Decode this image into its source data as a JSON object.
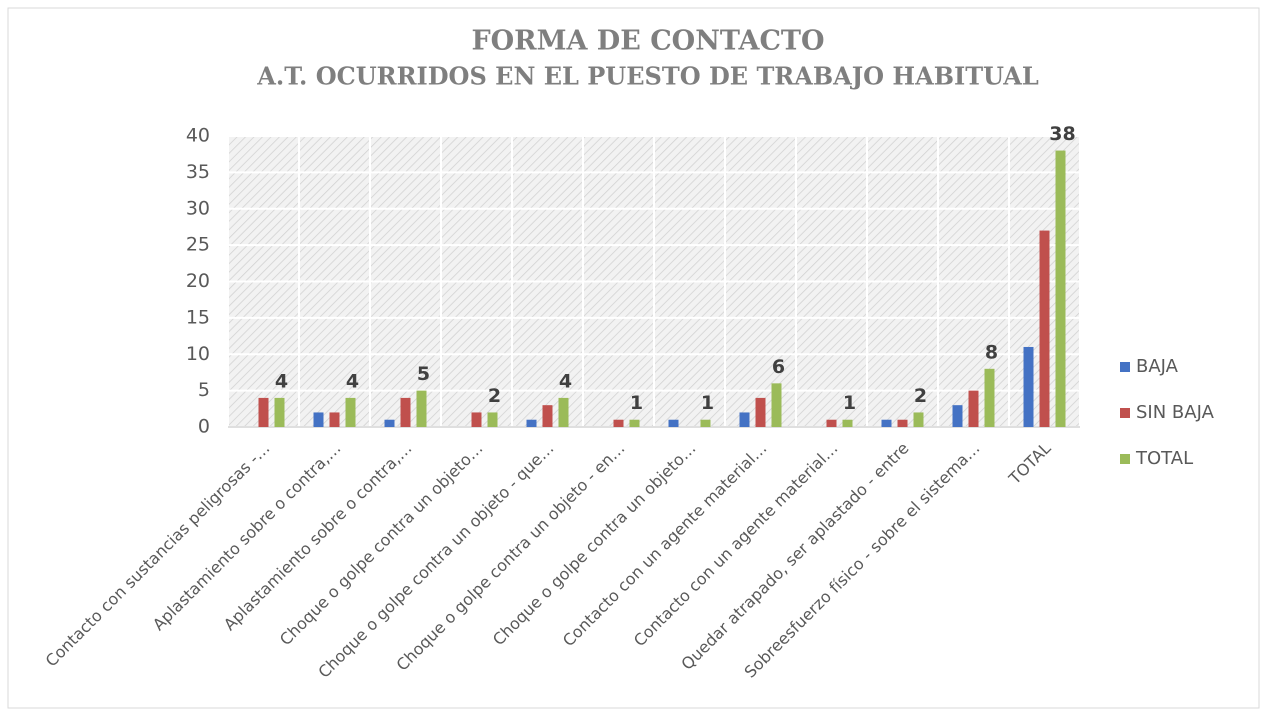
{
  "chart_data": {
    "type": "bar",
    "title": "FORMA DE CONTACTO",
    "subtitle": "A.T. OCURRIDOS EN EL PUESTO DE TRABAJO HABITUAL",
    "categories": [
      "Contacto con sustancias peligrosas -…",
      "Aplastamiento sobre o contra,…",
      "Aplastamiento sobre o contra,…",
      "Choque o golpe contra un objeto…",
      "Choque o golpe contra un objeto - que…",
      "Choque o golpe contra un objeto - en…",
      "Choque o golpe contra un objeto…",
      "Contacto con un agente material…",
      "Contacto con un agente material…",
      "Quedar atrapado, ser aplastado - entre",
      "Sobreesfuerzo físico - sobre el sistema…",
      "TOTAL"
    ],
    "series": [
      {
        "name": "BAJA",
        "color": "#4472c4",
        "values": [
          0,
          2,
          1,
          0,
          1,
          0,
          1,
          2,
          0,
          1,
          3,
          11
        ]
      },
      {
        "name": "SIN BAJA",
        "color": "#c0504d",
        "values": [
          4,
          2,
          4,
          2,
          3,
          1,
          0,
          4,
          1,
          1,
          5,
          27
        ]
      },
      {
        "name": "TOTAL",
        "color": "#9bbb59",
        "values": [
          4,
          4,
          5,
          2,
          4,
          1,
          1,
          6,
          1,
          2,
          8,
          38
        ],
        "data_labels": true
      }
    ],
    "ylim": [
      0,
      40
    ],
    "yticks": [
      0,
      5,
      10,
      15,
      20,
      25,
      30,
      35,
      40
    ],
    "grid": true,
    "legend": "right"
  }
}
